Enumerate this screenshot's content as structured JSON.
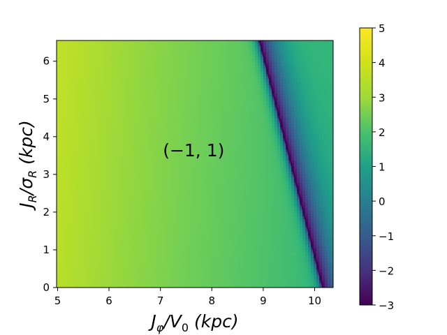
{
  "chart_data": {
    "type": "heatmap",
    "title": "",
    "xlabel_parts": {
      "main": "J",
      "sub": "φ",
      "rest": "/V",
      "sub2": "0",
      "unit": " (kpc)"
    },
    "ylabel_parts": {
      "main": "J",
      "sub": "R",
      "rest": "/σ",
      "sub2": "R",
      "unit": " (kpc)"
    },
    "xlim": [
      4.98,
      10.36
    ],
    "ylim": [
      0.0,
      6.55
    ],
    "xticks": [
      5,
      6,
      7,
      8,
      9,
      10
    ],
    "xtick_labels": [
      "5",
      "6",
      "7",
      "8",
      "9",
      "10"
    ],
    "yticks": [
      0,
      1,
      2,
      3,
      4,
      5,
      6
    ],
    "ytick_labels": [
      "0",
      "1",
      "2",
      "3",
      "4",
      "5",
      "6"
    ],
    "grid": false,
    "colormap": "viridis",
    "color_range": [
      -3,
      5
    ],
    "colorbar_ticks": [
      5,
      4,
      3,
      2,
      1,
      0,
      -1,
      -2,
      -3
    ],
    "colorbar_tick_labels": [
      "5",
      "4",
      "3",
      "2",
      "1",
      "0",
      "−1",
      "−2",
      "−3"
    ],
    "annotation": {
      "text": "(−1, 1)",
      "x": 8.0,
      "y": 3.7
    },
    "field_model": {
      "description_values": [
        {
          "x": 5.0,
          "y": 0.0,
          "value": 4.1
        },
        {
          "x": 8.0,
          "y": 0.0,
          "value": 3.0
        },
        {
          "x": 9.9,
          "y": 0.0,
          "value": 2.0
        },
        {
          "x": 10.36,
          "y": 3.0,
          "value": 2.0
        }
      ],
      "resonance_line": {
        "x_at_y0": 10.16,
        "x_at_ytop": 8.93,
        "min_value": -3
      }
    }
  }
}
